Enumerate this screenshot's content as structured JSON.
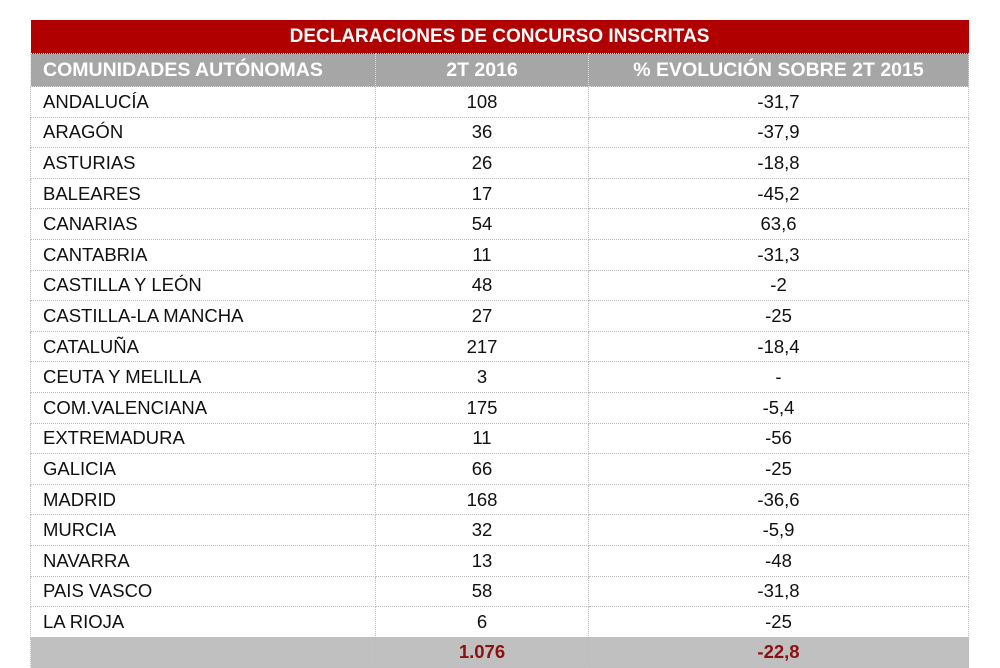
{
  "title": "DECLARACIONES DE CONCURSO INSCRITAS",
  "columns": [
    "COMUNIDADES AUTÓNOMAS",
    "2T 2016",
    "% EVOLUCIÓN SOBRE 2T 2015"
  ],
  "rows": [
    [
      "ANDALUCÍA",
      "108",
      "-31,7"
    ],
    [
      "ARAGÓN",
      "36",
      "-37,9"
    ],
    [
      "ASTURIAS",
      "26",
      "-18,8"
    ],
    [
      "BALEARES",
      "17",
      "-45,2"
    ],
    [
      "CANARIAS",
      "54",
      "63,6"
    ],
    [
      "CANTABRIA",
      "11",
      "-31,3"
    ],
    [
      "CASTILLA  Y LEÓN",
      "48",
      "-2"
    ],
    [
      "CASTILLA-LA MANCHA",
      "27",
      "-25"
    ],
    [
      "CATALUÑA",
      "217",
      "-18,4"
    ],
    [
      "CEUTA Y MELILLA",
      "3",
      "-"
    ],
    [
      "COM.VALENCIANA",
      "175",
      "-5,4"
    ],
    [
      "EXTREMADURA",
      "11",
      "-56"
    ],
    [
      "GALICIA",
      "66",
      "-25"
    ],
    [
      "MADRID",
      "168",
      "-36,6"
    ],
    [
      "MURCIA",
      "32",
      "-5,9"
    ],
    [
      "NAVARRA",
      "13",
      "-48"
    ],
    [
      "PAIS VASCO",
      "58",
      "-31,8"
    ],
    [
      "LA RIOJA",
      "6",
      "-25"
    ]
  ],
  "total": {
    "label": "",
    "value": "1.076",
    "evolution": "-22,8"
  },
  "colors": {
    "title_bg": "#b00000",
    "header_bg": "#a6a6a6",
    "total_bg": "#c0c0c0",
    "total_text": "#8b1010"
  }
}
